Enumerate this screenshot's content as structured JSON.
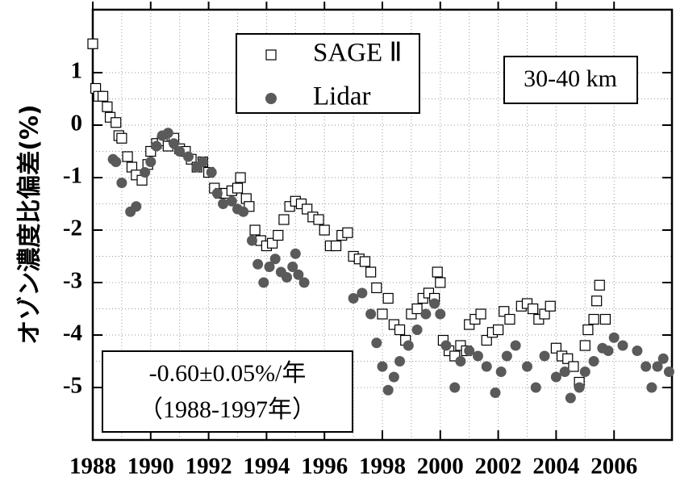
{
  "chart_data": {
    "type": "scatter",
    "y_label": "オゾン濃度比偏差(%)",
    "annotations": [
      "30-40 km",
      "-0.60±0.05%/年",
      "（1988-1997年）"
    ],
    "xlim": [
      1988,
      2008
    ],
    "xticks": [
      1988,
      1990,
      1992,
      1994,
      1996,
      1998,
      2000,
      2002,
      2004,
      2006
    ],
    "ylim": [
      -6,
      2.2
    ],
    "yticks": [
      -5,
      -4,
      -3,
      -2,
      -1,
      0,
      1
    ],
    "grid": true,
    "series": [
      {
        "name": "SAGE Ⅱ",
        "color": "#000000",
        "marker": "square",
        "x": [
          1988.0,
          1988.1,
          1988.2,
          1988.35,
          1988.5,
          1988.6,
          1988.8,
          1988.9,
          1989.0,
          1989.2,
          1989.35,
          1989.5,
          1989.7,
          1989.9,
          1990.0,
          1990.2,
          1990.4,
          1990.6,
          1990.8,
          1991.0,
          1991.2,
          1991.4,
          1991.6,
          1991.8,
          1992.0,
          1992.2,
          1992.4,
          1992.6,
          1992.8,
          1993.0,
          1993.1,
          1993.3,
          1993.4,
          1993.6,
          1993.8,
          1994.0,
          1994.2,
          1994.4,
          1994.6,
          1994.8,
          1995.0,
          1995.2,
          1995.4,
          1995.6,
          1995.8,
          1996.0,
          1996.2,
          1996.4,
          1996.6,
          1996.8,
          1997.0,
          1997.2,
          1997.4,
          1997.6,
          1997.8,
          1998.0,
          1998.2,
          1998.4,
          1998.6,
          1998.8,
          1999.0,
          1999.2,
          1999.4,
          1999.6,
          1999.8,
          1999.9,
          2000.0,
          2000.1,
          2000.3,
          2000.5,
          2000.7,
          2000.9,
          2001.0,
          2001.2,
          2001.4,
          2001.6,
          2001.8,
          2002.0,
          2002.2,
          2002.4,
          2002.8,
          2003.0,
          2003.2,
          2003.4,
          2003.6,
          2003.8,
          2004.0,
          2004.2,
          2004.4,
          2004.6,
          2004.8,
          2005.0,
          2005.1,
          2005.3,
          2005.4,
          2005.5,
          2005.7
        ],
        "values": [
          1.55,
          0.7,
          0.55,
          0.55,
          0.35,
          0.15,
          0.05,
          -0.2,
          -0.25,
          -0.6,
          -0.8,
          -0.95,
          -1.05,
          -0.75,
          -0.5,
          -0.35,
          -0.3,
          -0.4,
          -0.25,
          -0.45,
          -0.5,
          -0.65,
          -0.8,
          -0.7,
          -0.9,
          -1.2,
          -1.3,
          -1.3,
          -1.25,
          -1.2,
          -1.0,
          -1.4,
          -1.55,
          -2.0,
          -2.2,
          -2.3,
          -2.25,
          -2.1,
          -1.8,
          -1.55,
          -1.45,
          -1.5,
          -1.6,
          -1.75,
          -1.8,
          -2.0,
          -2.3,
          -2.3,
          -2.1,
          -2.05,
          -2.5,
          -2.55,
          -2.6,
          -2.8,
          -3.1,
          -3.6,
          -3.3,
          -3.8,
          -3.9,
          -4.1,
          -3.6,
          -3.5,
          -3.3,
          -3.2,
          -3.3,
          -2.8,
          -3.0,
          -4.1,
          -4.3,
          -4.4,
          -4.2,
          -4.3,
          -3.8,
          -3.7,
          -3.6,
          -4.1,
          -3.95,
          -3.9,
          -3.55,
          -3.7,
          -3.45,
          -3.4,
          -3.5,
          -3.7,
          -3.6,
          -3.45,
          -4.25,
          -4.4,
          -4.45,
          -4.6,
          -4.9,
          -4.2,
          -3.9,
          -3.7,
          -3.35,
          -3.05,
          -3.7
        ]
      },
      {
        "name": "Lidar",
        "color": "#5a5a5a",
        "marker": "circle",
        "x": [
          1988.7,
          1988.8,
          1989.0,
          1989.3,
          1989.5,
          1989.8,
          1990.0,
          1990.2,
          1990.4,
          1990.6,
          1990.8,
          1991.0,
          1991.3,
          1991.6,
          1991.8,
          1992.1,
          1992.3,
          1992.5,
          1992.8,
          1993.0,
          1993.2,
          1993.5,
          1993.7,
          1993.9,
          1994.1,
          1994.3,
          1994.5,
          1994.7,
          1994.9,
          1995.0,
          1995.1,
          1995.3,
          1997.0,
          1997.3,
          1997.6,
          1997.8,
          1998.0,
          1998.2,
          1998.4,
          1998.6,
          1998.9,
          1999.2,
          1999.5,
          1999.8,
          2000.0,
          2000.2,
          2000.5,
          2000.7,
          2001.0,
          2001.3,
          2001.6,
          2001.9,
          2002.1,
          2002.3,
          2002.6,
          2003.0,
          2003.3,
          2003.6,
          2004.0,
          2004.3,
          2004.5,
          2004.8,
          2005.0,
          2005.3,
          2005.6,
          2005.8,
          2006.0,
          2006.3,
          2006.8,
          2007.1,
          2007.3,
          2007.5,
          2007.7,
          2007.9
        ],
        "values": [
          -0.65,
          -0.7,
          -1.1,
          -1.65,
          -1.55,
          -0.9,
          -0.7,
          -0.4,
          -0.2,
          -0.15,
          -0.35,
          -0.5,
          -0.6,
          -0.8,
          -0.7,
          -0.9,
          -1.3,
          -1.5,
          -1.45,
          -1.6,
          -1.65,
          -2.2,
          -2.65,
          -3.0,
          -2.7,
          -2.55,
          -2.8,
          -2.9,
          -2.7,
          -2.45,
          -2.85,
          -3.0,
          -3.3,
          -3.2,
          -3.6,
          -4.15,
          -4.6,
          -5.05,
          -4.8,
          -4.5,
          -4.2,
          -3.9,
          -3.6,
          -3.4,
          -3.6,
          -4.2,
          -5.0,
          -4.5,
          -4.3,
          -4.4,
          -4.6,
          -5.1,
          -4.7,
          -4.4,
          -4.2,
          -4.6,
          -5.0,
          -4.4,
          -4.8,
          -4.7,
          -5.2,
          -5.0,
          -4.7,
          -4.5,
          -4.25,
          -4.3,
          -4.05,
          -4.2,
          -4.3,
          -4.6,
          -5.0,
          -4.6,
          -4.45,
          -4.7
        ]
      }
    ]
  }
}
